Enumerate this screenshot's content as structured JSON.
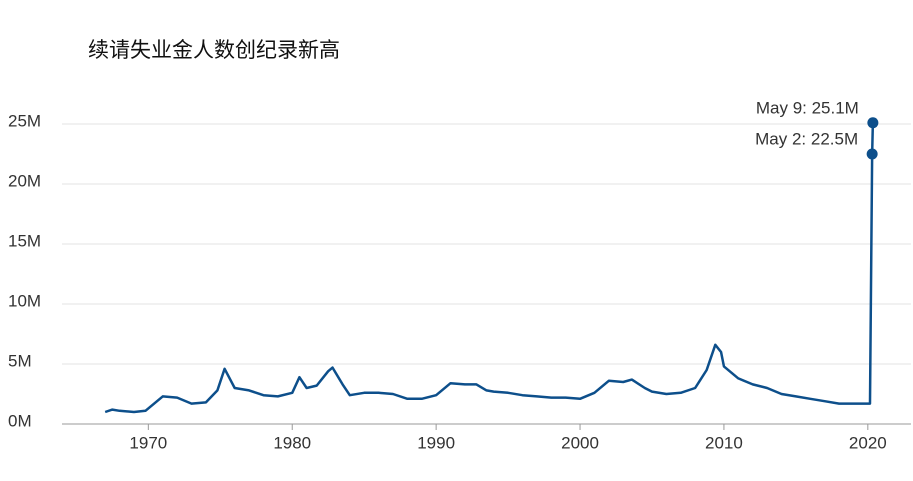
{
  "chart_data": {
    "type": "line",
    "title": "续请失业金人数创纪录新高",
    "x": [
      1967.0,
      1967.5,
      1968.0,
      1969.0,
      1969.8,
      1970.5,
      1971.0,
      1972.0,
      1973.0,
      1974.0,
      1974.8,
      1975.3,
      1976.0,
      1977.0,
      1978.0,
      1979.0,
      1980.0,
      1980.5,
      1981.0,
      1981.7,
      1982.5,
      1982.8,
      1983.5,
      1984.0,
      1985.0,
      1986.0,
      1987.0,
      1988.0,
      1989.0,
      1990.0,
      1991.0,
      1992.0,
      1992.8,
      1993.5,
      1994.0,
      1995.0,
      1996.0,
      1997.0,
      1998.0,
      1999.0,
      2000.0,
      2001.0,
      2002.0,
      2003.0,
      2003.6,
      2004.5,
      2005.0,
      2006.0,
      2007.0,
      2008.0,
      2008.8,
      2009.4,
      2009.8,
      2010.0,
      2011.0,
      2012.0,
      2013.0,
      2014.0,
      2015.0,
      2016.0,
      2017.0,
      2018.0,
      2019.0,
      2020.15,
      2020.3,
      2020.35
    ],
    "series": [
      {
        "color": "#0d4f8b",
        "values": [
          1.0,
          1.2,
          1.1,
          1.0,
          1.1,
          1.8,
          2.3,
          2.2,
          1.7,
          1.8,
          2.8,
          4.6,
          3.0,
          2.8,
          2.4,
          2.3,
          2.6,
          3.9,
          3.0,
          3.2,
          4.4,
          4.7,
          3.3,
          2.4,
          2.6,
          2.6,
          2.5,
          2.1,
          2.1,
          2.4,
          3.4,
          3.3,
          3.3,
          2.8,
          2.7,
          2.6,
          2.4,
          2.3,
          2.2,
          2.2,
          2.1,
          2.6,
          3.6,
          3.5,
          3.7,
          3.0,
          2.7,
          2.5,
          2.6,
          3.0,
          4.5,
          6.6,
          6.0,
          4.8,
          3.8,
          3.3,
          3.0,
          2.5,
          2.3,
          2.1,
          1.9,
          1.7,
          1.7,
          1.7,
          22.5,
          25.1
        ]
      }
    ],
    "annotations": [
      "May 9: 25.1M",
      "May 2: 22.5M"
    ],
    "xlim": [
      1964,
      2023
    ],
    "xticks": [
      1970,
      1980,
      1990,
      2000,
      2010,
      2020
    ],
    "ylim": [
      0,
      25
    ],
    "yticks": [
      {
        "value": 0,
        "label": "0M"
      },
      {
        "value": 5,
        "label": "5M"
      },
      {
        "value": 10,
        "label": "10M"
      },
      {
        "value": 15,
        "label": "15M"
      },
      {
        "value": 20,
        "label": "20M"
      },
      {
        "value": 25,
        "label": "25M"
      }
    ],
    "grid": true
  }
}
